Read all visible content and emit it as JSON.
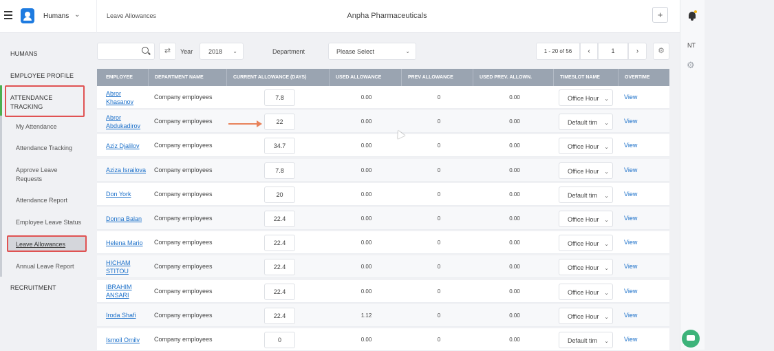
{
  "topbar": {
    "module": "Humans",
    "breadcrumb": "Leave Allowances",
    "company": "Anpha Pharmaceuticals",
    "plus_label": "+",
    "user_initials": "NT"
  },
  "sidebar": {
    "humans": "HUMANS",
    "employee_profile": "EMPLOYEE PROFILE",
    "attendance_tracking_l1": "ATTENDANCE",
    "attendance_tracking_l2": "TRACKING",
    "sub": {
      "my_attendance": "My Attendance",
      "attendance_tracking": "Attendance Tracking",
      "approve_leave_l1": "Approve Leave",
      "approve_leave_l2": "Requests",
      "attendance_report": "Attendance Report",
      "employee_leave_status": "Employee Leave Status",
      "leave_allowances": "Leave Allowances",
      "annual_leave_report": "Annual Leave Report"
    },
    "recruitment": "RECRUITMENT"
  },
  "filters": {
    "search_value": "",
    "year_label": "Year",
    "year_value": "2018",
    "department_label": "Department",
    "department_value": "Please Select"
  },
  "pager": {
    "range": "1 - 20 of 56",
    "page": "1",
    "prev": "‹",
    "next": "›"
  },
  "table": {
    "headers": [
      "EMPLOYEE",
      "DEPARTMENT NAME",
      "CURRENT ALLOWANCE (DAYS)",
      "USED ALLOWANCE",
      "PREV ALLOWANCE",
      "USED PREV. ALLOWN.",
      "TIMESLOT NAME",
      "OVERTIME"
    ],
    "rows": [
      {
        "name_l1": "Abror",
        "name_l2": "Khasanov",
        "dept": "Company employees",
        "allow": "7.8",
        "used": "0.00",
        "prev": "0",
        "usedprev": "0.00",
        "slot": "Office Hour",
        "view": "View"
      },
      {
        "name_l1": "Abror",
        "name_l2": "Abdukadirov",
        "dept": "Company employees",
        "allow": "22",
        "used": "0.00",
        "prev": "0",
        "usedprev": "0.00",
        "slot": "Default tim",
        "view": "View"
      },
      {
        "name_l1": "Aziz Djalilov",
        "name_l2": "",
        "dept": "Company employees",
        "allow": "34.7",
        "used": "0.00",
        "prev": "0",
        "usedprev": "0.00",
        "slot": "Office Hour",
        "view": "View"
      },
      {
        "name_l1": "Aziza Israilova",
        "name_l2": "",
        "dept": "Company employees",
        "allow": "7.8",
        "used": "0.00",
        "prev": "0",
        "usedprev": "0.00",
        "slot": "Office Hour",
        "view": "View"
      },
      {
        "name_l1": "Don York",
        "name_l2": "",
        "dept": "Company employees",
        "allow": "20",
        "used": "0.00",
        "prev": "0",
        "usedprev": "0.00",
        "slot": "Default tim",
        "view": "View"
      },
      {
        "name_l1": "Donna Balan",
        "name_l2": "",
        "dept": "Company employees",
        "allow": "22.4",
        "used": "0.00",
        "prev": "0",
        "usedprev": "0.00",
        "slot": "Office Hour",
        "view": "View"
      },
      {
        "name_l1": "Helena Mario",
        "name_l2": "",
        "dept": "Company employees",
        "allow": "22.4",
        "used": "0.00",
        "prev": "0",
        "usedprev": "0.00",
        "slot": "Office Hour",
        "view": "View"
      },
      {
        "name_l1": "HICHAM",
        "name_l2": "STITOU",
        "dept": "Company employees",
        "allow": "22.4",
        "used": "0.00",
        "prev": "0",
        "usedprev": "0.00",
        "slot": "Office Hour",
        "view": "View"
      },
      {
        "name_l1": "IBRAHIM",
        "name_l2": "ANSARI",
        "dept": "Company employees",
        "allow": "22.4",
        "used": "0.00",
        "prev": "0",
        "usedprev": "0.00",
        "slot": "Office Hour",
        "view": "View"
      },
      {
        "name_l1": "Iroda Shafi",
        "name_l2": "",
        "dept": "Company employees",
        "allow": "22.4",
        "used": "1.12",
        "prev": "0",
        "usedprev": "0.00",
        "slot": "Office Hour",
        "view": "View"
      },
      {
        "name_l1": "Ismoil Omilv",
        "name_l2": "",
        "dept": "Company employees",
        "allow": "0",
        "used": "0.00",
        "prev": "0",
        "usedprev": "0.00",
        "slot": "Default tim",
        "view": "View"
      }
    ]
  },
  "colors": {
    "accent": "#1e7be0",
    "link": "#1a6fc9",
    "header_bg": "#9aa4b1",
    "highlight_box": "#e05252",
    "annotation_arrow": "#e8825a",
    "chat": "#3db37a"
  }
}
